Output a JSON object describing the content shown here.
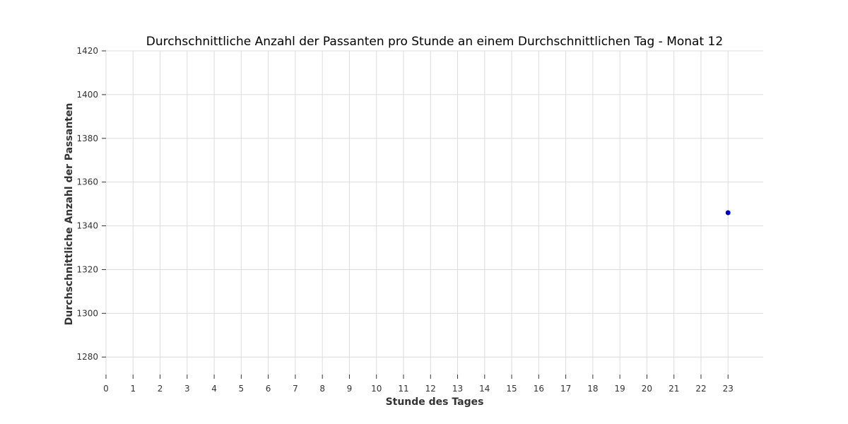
{
  "chart_data": {
    "type": "scatter",
    "title": "Durchschnittliche Anzahl der Passanten pro Stunde an einem Durchschnittlichen Tag - Monat 12",
    "xlabel": "Stunde des Tages",
    "ylabel": "Durchschnittliche Anzahl der Passanten",
    "x_ticks": [
      0,
      1,
      2,
      3,
      4,
      5,
      6,
      7,
      8,
      9,
      10,
      11,
      12,
      13,
      14,
      15,
      16,
      17,
      18,
      19,
      20,
      21,
      22,
      23
    ],
    "y_ticks": [
      1280,
      1300,
      1320,
      1340,
      1360,
      1380,
      1400,
      1420
    ],
    "xlim": [
      0,
      24.3
    ],
    "ylim": [
      1272,
      1420
    ],
    "grid": true,
    "series": [
      {
        "x": [
          23
        ],
        "y": [
          1346
        ],
        "color": "#0000cc"
      }
    ]
  }
}
